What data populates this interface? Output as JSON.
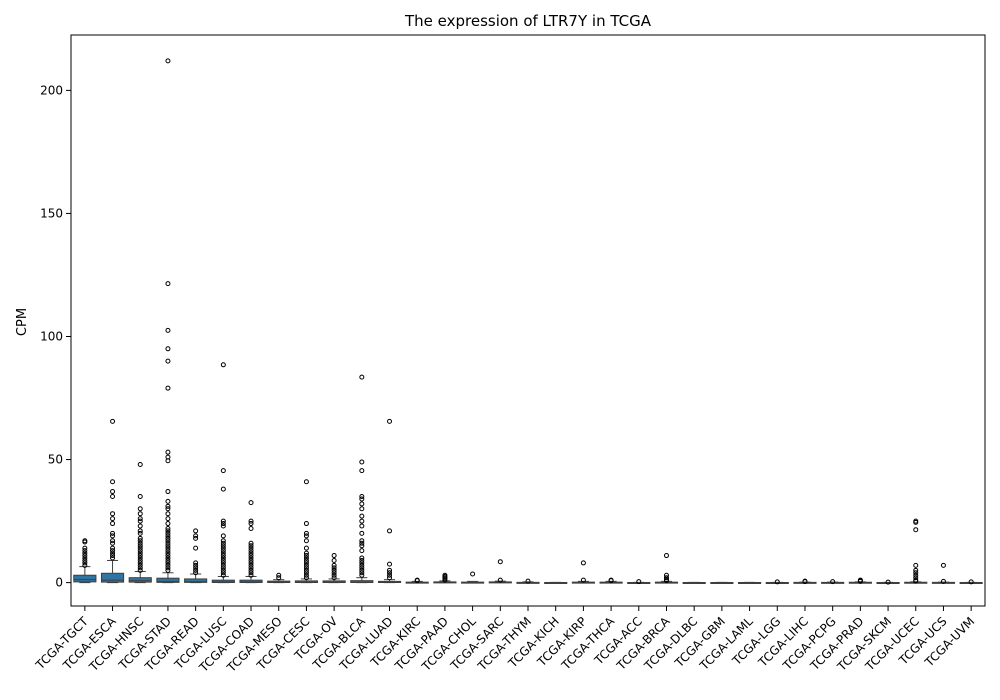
{
  "chart_data": {
    "type": "box",
    "title": "The expression of LTR7Y in TCGA",
    "xlabel": "",
    "ylabel": "CPM",
    "ylim": [
      -9.5,
      222.5
    ],
    "yticks": [
      0,
      50,
      100,
      150,
      200
    ],
    "grid": false,
    "box_color": "#3274a1",
    "categories": [
      "TCGA-TGCT",
      "TCGA-ESCA",
      "TCGA-HNSC",
      "TCGA-STAD",
      "TCGA-READ",
      "TCGA-LUSC",
      "TCGA-COAD",
      "TCGA-MESO",
      "TCGA-CESC",
      "TCGA-OV",
      "TCGA-BLCA",
      "TCGA-LUAD",
      "TCGA-KIRC",
      "TCGA-PAAD",
      "TCGA-CHOL",
      "TCGA-SARC",
      "TCGA-THYM",
      "TCGA-KICH",
      "TCGA-KIRP",
      "TCGA-THCA",
      "TCGA-ACC",
      "TCGA-BRCA",
      "TCGA-DLBC",
      "TCGA-GBM",
      "TCGA-LAML",
      "TCGA-LGG",
      "TCGA-LIHC",
      "TCGA-PCPG",
      "TCGA-PRAD",
      "TCGA-SKCM",
      "TCGA-UCEC",
      "TCGA-UCS",
      "TCGA-UVM"
    ],
    "boxes": [
      {
        "whislo": 0,
        "q1": 0.3,
        "med": 1.2,
        "q3": 3.0,
        "whishi": 6.5,
        "fliers": [
          7,
          8,
          9,
          10,
          11,
          12,
          13,
          14,
          16.5,
          17
        ]
      },
      {
        "whislo": 0,
        "q1": 0.2,
        "med": 1.0,
        "q3": 3.8,
        "whishi": 9,
        "fliers": [
          10,
          11,
          12,
          13,
          14,
          16,
          17,
          19,
          20,
          24,
          26,
          28,
          35,
          37,
          41,
          65.5
        ]
      },
      {
        "whislo": 0,
        "q1": 0.2,
        "med": 0.8,
        "q3": 2.0,
        "whishi": 4.5,
        "fliers": [
          5,
          6,
          7,
          8,
          9,
          10,
          11,
          12,
          13,
          14,
          15,
          16,
          17,
          18,
          20,
          21,
          23,
          25,
          26,
          28,
          30,
          35,
          48
        ]
      },
      {
        "whislo": 0,
        "q1": 0.1,
        "med": 0.5,
        "q3": 1.8,
        "whishi": 4.0,
        "fliers": [
          5,
          6,
          7,
          8,
          9,
          10,
          11,
          12,
          13,
          14,
          15,
          16,
          17,
          18,
          19,
          20,
          21,
          22,
          24,
          26,
          28,
          30,
          31,
          33,
          37,
          49.5,
          51,
          53,
          79,
          90,
          95,
          102.5,
          121.5,
          212
        ]
      },
      {
        "whislo": 0,
        "q1": 0.1,
        "med": 0.4,
        "q3": 1.5,
        "whishi": 3.5,
        "fliers": [
          4,
          5,
          6,
          7,
          8,
          14,
          18,
          19,
          21
        ]
      },
      {
        "whislo": 0,
        "q1": 0.05,
        "med": 0.3,
        "q3": 1.0,
        "whishi": 2.5,
        "fliers": [
          3,
          4,
          5,
          6,
          7,
          8,
          9,
          10,
          11,
          12,
          13,
          14,
          15,
          16,
          17,
          19,
          23,
          24,
          25,
          38,
          45.5,
          88.5
        ]
      },
      {
        "whislo": 0,
        "q1": 0.05,
        "med": 0.3,
        "q3": 1.0,
        "whishi": 2.5,
        "fliers": [
          3,
          4,
          5,
          6,
          7,
          8,
          9,
          10,
          11,
          12,
          13,
          14,
          15,
          16,
          22,
          24,
          25,
          32.5
        ]
      },
      {
        "whislo": 0,
        "q1": 0.05,
        "med": 0.2,
        "q3": 0.6,
        "whishi": 1.2,
        "fliers": [
          2,
          3
        ]
      },
      {
        "whislo": 0,
        "q1": 0.05,
        "med": 0.2,
        "q3": 0.7,
        "whishi": 1.5,
        "fliers": [
          2,
          3,
          4,
          5,
          6,
          7,
          8,
          9,
          10,
          11,
          12,
          14,
          17,
          19,
          20,
          24,
          41
        ]
      },
      {
        "whislo": 0,
        "q1": 0.05,
        "med": 0.2,
        "q3": 0.7,
        "whishi": 1.5,
        "fliers": [
          2,
          3,
          4,
          5,
          6,
          7,
          9,
          11
        ]
      },
      {
        "whislo": 0,
        "q1": 0.05,
        "med": 0.2,
        "q3": 0.8,
        "whishi": 2.0,
        "fliers": [
          3,
          4,
          5,
          6,
          7,
          8,
          9,
          10,
          13,
          15,
          16,
          17,
          20,
          23,
          25,
          27,
          30,
          32,
          34,
          35,
          45.5,
          49,
          83.5
        ]
      },
      {
        "whislo": 0,
        "q1": 0.05,
        "med": 0.2,
        "q3": 0.5,
        "whishi": 1.2,
        "fliers": [
          2,
          3,
          4,
          5,
          7.5,
          21,
          65.5
        ]
      },
      {
        "whislo": 0,
        "q1": 0.0,
        "med": 0.05,
        "q3": 0.2,
        "whishi": 0.5,
        "fliers": [
          0.8,
          1
        ]
      },
      {
        "whislo": 0,
        "q1": 0.0,
        "med": 0.1,
        "q3": 0.3,
        "whishi": 0.7,
        "fliers": [
          1,
          1.5,
          2,
          2.5,
          3
        ]
      },
      {
        "whislo": 0,
        "q1": 0.0,
        "med": 0.05,
        "q3": 0.2,
        "whishi": 0.5,
        "fliers": [
          3.5
        ]
      },
      {
        "whislo": 0,
        "q1": 0.0,
        "med": 0.05,
        "q3": 0.3,
        "whishi": 0.6,
        "fliers": [
          1,
          8.5
        ]
      },
      {
        "whislo": 0,
        "q1": 0.0,
        "med": 0.05,
        "q3": 0.1,
        "whishi": 0.3,
        "fliers": [
          0.6
        ]
      },
      {
        "whislo": 0,
        "q1": 0.0,
        "med": 0.0,
        "q3": 0.05,
        "whishi": 0.1,
        "fliers": []
      },
      {
        "whislo": 0,
        "q1": 0.0,
        "med": 0.05,
        "q3": 0.2,
        "whishi": 0.5,
        "fliers": [
          1,
          8
        ]
      },
      {
        "whislo": 0,
        "q1": 0.0,
        "med": 0.05,
        "q3": 0.2,
        "whishi": 0.5,
        "fliers": [
          0.8,
          1
        ]
      },
      {
        "whislo": 0,
        "q1": 0.0,
        "med": 0.0,
        "q3": 0.05,
        "whishi": 0.1,
        "fliers": [
          0.4
        ]
      },
      {
        "whislo": 0,
        "q1": 0.0,
        "med": 0.05,
        "q3": 0.2,
        "whishi": 0.5,
        "fliers": [
          0.8,
          1.2,
          2,
          3,
          11
        ]
      },
      {
        "whislo": 0,
        "q1": 0.0,
        "med": 0.0,
        "q3": 0.05,
        "whishi": 0.1,
        "fliers": []
      },
      {
        "whislo": 0,
        "q1": 0.0,
        "med": 0.0,
        "q3": 0.05,
        "whishi": 0.1,
        "fliers": []
      },
      {
        "whislo": 0,
        "q1": 0.0,
        "med": 0.0,
        "q3": 0.05,
        "whishi": 0.1,
        "fliers": []
      },
      {
        "whislo": 0,
        "q1": 0.0,
        "med": 0.0,
        "q3": 0.05,
        "whishi": 0.1,
        "fliers": [
          0.3
        ]
      },
      {
        "whislo": 0,
        "q1": 0.0,
        "med": 0.05,
        "q3": 0.1,
        "whishi": 0.2,
        "fliers": [
          0.4,
          0.6
        ]
      },
      {
        "whislo": 0,
        "q1": 0.0,
        "med": 0.05,
        "q3": 0.1,
        "whishi": 0.2,
        "fliers": [
          0.4
        ]
      },
      {
        "whislo": 0,
        "q1": 0.0,
        "med": 0.05,
        "q3": 0.15,
        "whishi": 0.3,
        "fliers": [
          0.5,
          0.8,
          1
        ]
      },
      {
        "whislo": 0,
        "q1": 0.0,
        "med": 0.0,
        "q3": 0.05,
        "whishi": 0.1,
        "fliers": [
          0.2
        ]
      },
      {
        "whislo": 0,
        "q1": 0.0,
        "med": 0.05,
        "q3": 0.15,
        "whishi": 0.3,
        "fliers": [
          0.6,
          1,
          2,
          3,
          4,
          5,
          7,
          21.5,
          24.5,
          25
        ]
      },
      {
        "whislo": 0,
        "q1": 0.0,
        "med": 0.05,
        "q3": 0.1,
        "whishi": 0.2,
        "fliers": [
          0.5,
          7
        ]
      },
      {
        "whislo": 0,
        "q1": 0.0,
        "med": 0.0,
        "q3": 0.05,
        "whishi": 0.1,
        "fliers": [
          0.3
        ]
      }
    ]
  }
}
